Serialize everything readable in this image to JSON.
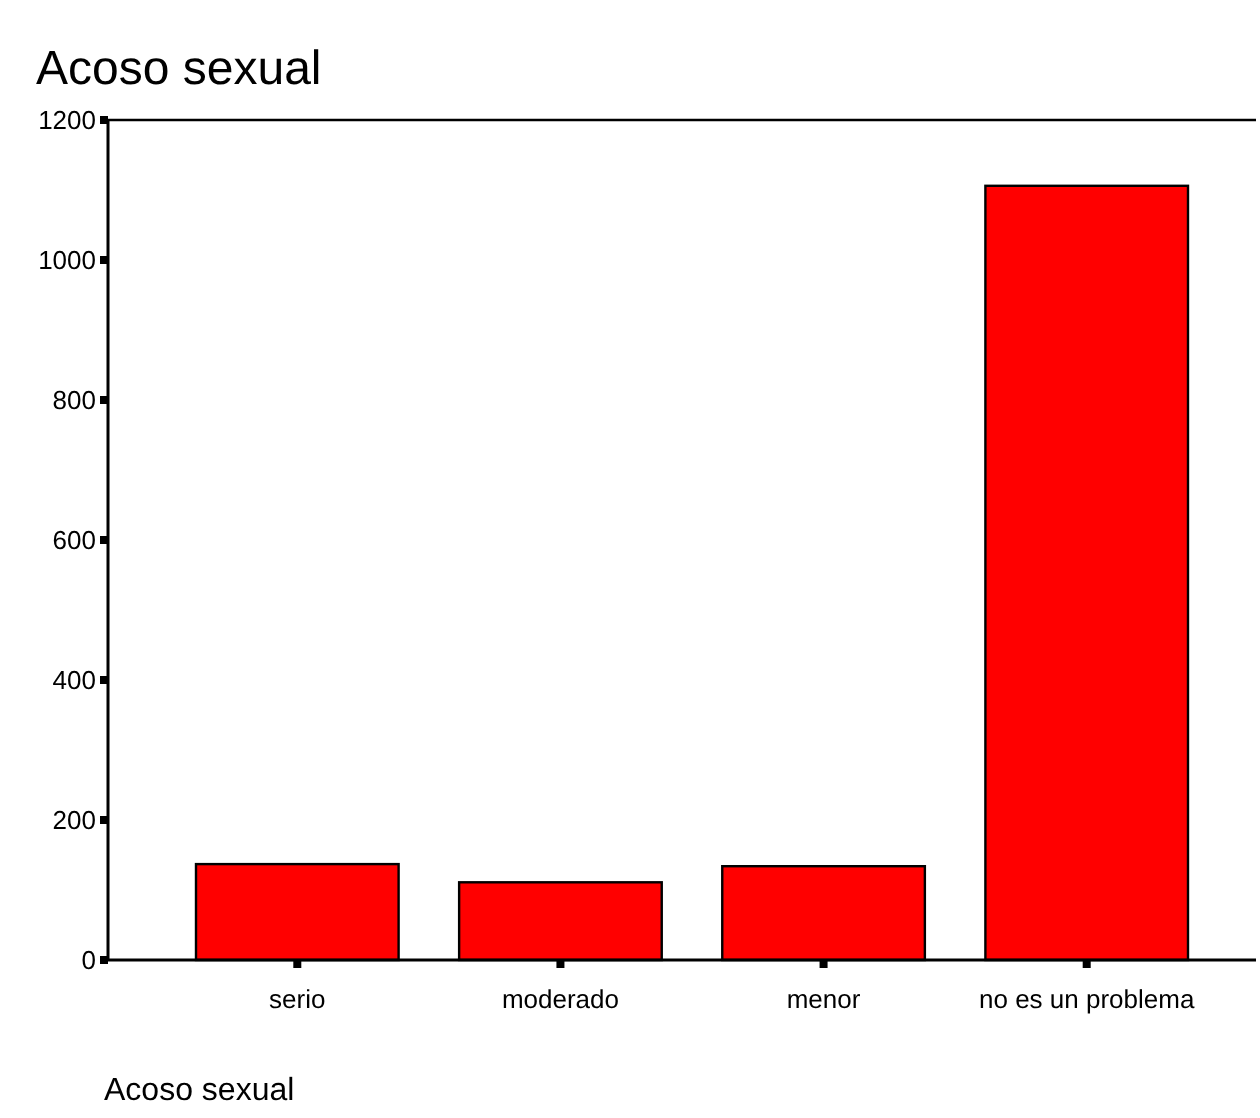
{
  "chart_data": {
    "type": "bar",
    "title": "Acoso sexual",
    "categories": [
      "serio",
      "moderado",
      "menor",
      "no es un problema"
    ],
    "values": [
      137,
      111,
      134,
      1106
    ],
    "color": "#ff0000",
    "ylim": [
      0,
      1200
    ],
    "yticks": [
      0,
      200,
      400,
      600,
      800,
      1000,
      1200
    ],
    "grid": false,
    "annotations": [
      "Acoso sexual"
    ]
  }
}
